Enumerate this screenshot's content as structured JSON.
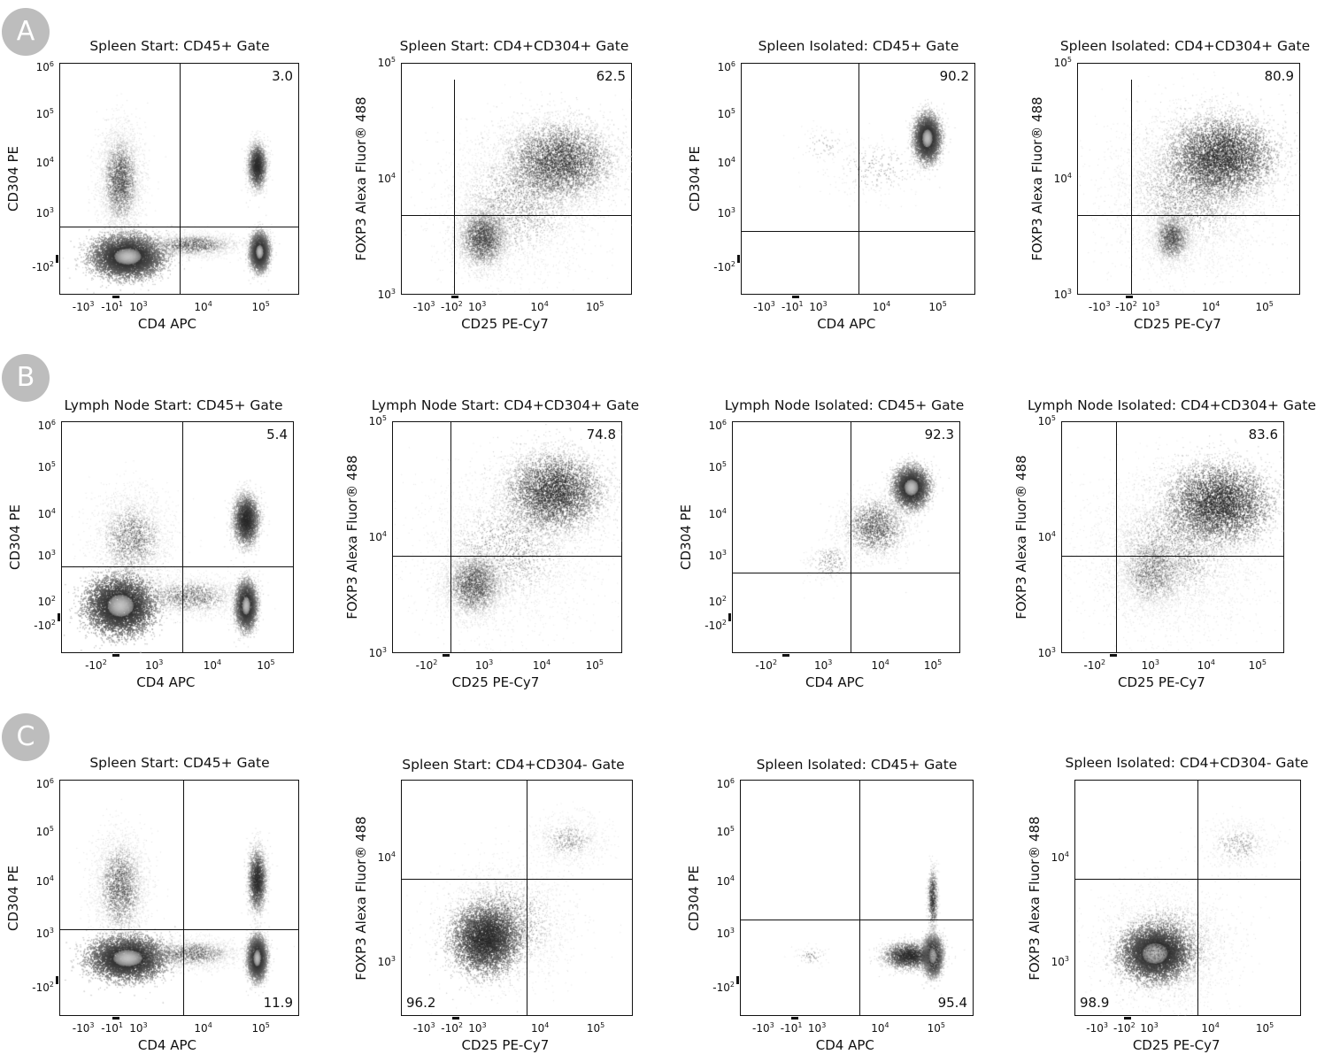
{
  "rows": [
    {
      "label": "A"
    },
    {
      "label": "B"
    },
    {
      "label": "C"
    }
  ],
  "chart_data": [
    {
      "type": "scatter",
      "row": "A",
      "title": "Spleen Start: CD45+ Gate",
      "xlabel": "CD4 APC",
      "ylabel": "CD304 PE",
      "xticks": [
        "-10^3",
        "-10^1",
        "10^3",
        "10^4",
        "10^5"
      ],
      "yticks": [
        "-10^2",
        "10^3",
        "10^4",
        "10^5",
        "10^6"
      ],
      "gate_percent": "3.0",
      "gate_quadrant": "upper-right",
      "populations": [
        {
          "name": "CD4- CD304- cluster",
          "x": "~10^2",
          "y": "~-10^2",
          "density": "very high"
        },
        {
          "name": "CD4+ CD304- cluster",
          "x": "~10^5",
          "y": "~0",
          "density": "high"
        },
        {
          "name": "CD4+ CD304+ cluster",
          "x": "~10^5",
          "y": "~10^4",
          "density": "medium"
        },
        {
          "name": "CD4- CD304 spread",
          "x": "~10^2",
          "y": "10^3-10^5",
          "density": "low"
        }
      ]
    },
    {
      "type": "scatter",
      "row": "A",
      "title": "Spleen Start: CD4+CD304+ Gate",
      "xlabel": "CD25 PE-Cy7",
      "ylabel": "FOXP3 Alexa Fluor® 488",
      "xticks": [
        "-10^3",
        "-10^2",
        "10^3",
        "10^4",
        "10^5"
      ],
      "yticks": [
        "10^3",
        "10^4",
        "10^5"
      ],
      "gate_percent": "62.5",
      "gate_quadrant": "upper-right",
      "populations": [
        {
          "name": "CD25+ FOXP3+ cluster",
          "x": "~10^4",
          "y": "~1.5x10^4",
          "density": "medium"
        },
        {
          "name": "CD25 low FOXP3 low cluster",
          "x": "~10^3",
          "y": "~3x10^3",
          "density": "medium"
        }
      ]
    },
    {
      "type": "scatter",
      "row": "A",
      "title": "Spleen Isolated: CD45+ Gate",
      "xlabel": "CD4 APC",
      "ylabel": "CD304 PE",
      "xticks": [
        "-10^3",
        "-10^1",
        "10^3",
        "10^4",
        "10^5"
      ],
      "yticks": [
        "-10^2",
        "10^3",
        "10^4",
        "10^5",
        "10^6"
      ],
      "gate_percent": "90.2",
      "gate_quadrant": "upper-right",
      "populations": [
        {
          "name": "CD4+ CD304+ cluster",
          "x": "~7x10^4",
          "y": "~4x10^4",
          "density": "very high"
        }
      ]
    },
    {
      "type": "scatter",
      "row": "A",
      "title": "Spleen Isolated: CD4+CD304+ Gate",
      "xlabel": "CD25 PE-Cy7",
      "ylabel": "FOXP3 Alexa Fluor® 488",
      "xticks": [
        "-10^3",
        "-10^2",
        "10^3",
        "10^4",
        "10^5"
      ],
      "yticks": [
        "10^3",
        "10^4",
        "10^5"
      ],
      "gate_percent": "80.9",
      "gate_quadrant": "upper-right",
      "populations": [
        {
          "name": "CD25+ FOXP3+ cluster",
          "x": "~10^4",
          "y": "~1.5x10^4",
          "density": "high"
        },
        {
          "name": "CD25 low cluster",
          "x": "~10^3",
          "y": "~3x10^3",
          "density": "low"
        }
      ]
    },
    {
      "type": "scatter",
      "row": "B",
      "title": "Lymph Node Start: CD45+ Gate",
      "xlabel": "CD4 APC",
      "ylabel": "CD304 PE",
      "xticks": [
        "-10^2",
        "10^3",
        "10^4",
        "10^5"
      ],
      "yticks": [
        "-10^2",
        "10^2",
        "10^3",
        "10^4",
        "10^5",
        "10^6"
      ],
      "gate_percent": "5.4",
      "gate_quadrant": "upper-right",
      "populations": [
        {
          "name": "CD4- CD304- cluster",
          "x": "~2x10^2",
          "y": "~10^2",
          "density": "very high"
        },
        {
          "name": "CD4+ CD304- cluster",
          "x": "~5x10^4",
          "y": "~10^2",
          "density": "high"
        },
        {
          "name": "CD4+ CD304+ cluster",
          "x": "~5x10^4",
          "y": "~5x10^3",
          "density": "medium"
        }
      ]
    },
    {
      "type": "scatter",
      "row": "B",
      "title": "Lymph Node Start: CD4+CD304+ Gate",
      "xlabel": "CD25 PE-Cy7",
      "ylabel": "FOXP3 Alexa Fluor® 488",
      "xticks": [
        "-10^2",
        "10^3",
        "10^4",
        "10^5"
      ],
      "yticks": [
        "10^3",
        "10^4",
        "10^5"
      ],
      "gate_percent": "74.8",
      "gate_quadrant": "upper-right",
      "populations": [
        {
          "name": "CD25+ FOXP3+ cluster",
          "x": "~2x10^4",
          "y": "~2x10^4",
          "density": "medium"
        },
        {
          "name": "CD25 low cluster",
          "x": "~10^3",
          "y": "~3x10^3",
          "density": "low"
        }
      ]
    },
    {
      "type": "scatter",
      "row": "B",
      "title": "Lymph Node Isolated: CD45+ Gate",
      "xlabel": "CD4 APC",
      "ylabel": "CD304 PE",
      "xticks": [
        "-10^2",
        "10^3",
        "10^4",
        "10^5"
      ],
      "yticks": [
        "-10^2",
        "10^2",
        "10^3",
        "10^4",
        "10^5",
        "10^6"
      ],
      "gate_percent": "92.3",
      "gate_quadrant": "upper-right",
      "populations": [
        {
          "name": "CD4+ CD304+ cluster",
          "x": "~3x10^4",
          "y": "~2x10^4",
          "density": "very high"
        }
      ]
    },
    {
      "type": "scatter",
      "row": "B",
      "title": "Lymph Node Isolated: CD4+CD304+ Gate",
      "xlabel": "CD25 PE-Cy7",
      "ylabel": "FOXP3 Alexa Fluor® 488",
      "xticks": [
        "-10^2",
        "10^3",
        "10^4",
        "10^5"
      ],
      "yticks": [
        "10^3",
        "10^4",
        "10^5"
      ],
      "gate_percent": "83.6",
      "gate_quadrant": "upper-right",
      "populations": [
        {
          "name": "CD25+ FOXP3+ cluster",
          "x": "~2x10^4",
          "y": "~2x10^4",
          "density": "high"
        }
      ]
    },
    {
      "type": "scatter",
      "row": "C",
      "title": "Spleen Start: CD45+ Gate",
      "xlabel": "CD4 APC",
      "ylabel": "CD304 PE",
      "xticks": [
        "-10^3",
        "-10^1",
        "10^3",
        "10^4",
        "10^5"
      ],
      "yticks": [
        "-10^2",
        "10^3",
        "10^4",
        "10^5",
        "10^6"
      ],
      "gate_percent": "11.9",
      "gate_quadrant": "lower-right",
      "populations": [
        {
          "name": "CD4- CD304- cluster",
          "x": "~10^2",
          "y": "~0",
          "density": "very high"
        },
        {
          "name": "CD4+ CD304- cluster",
          "x": "~8x10^4",
          "y": "~0",
          "density": "high"
        },
        {
          "name": "CD4+ CD304+ cluster",
          "x": "~8x10^4",
          "y": "~10^4",
          "density": "medium"
        }
      ]
    },
    {
      "type": "scatter",
      "row": "C",
      "title": "Spleen Start: CD4+CD304- Gate",
      "xlabel": "CD25 PE-Cy7",
      "ylabel": "FOXP3 Alexa Fluor® 488",
      "xticks": [
        "-10^3",
        "-10^2",
        "10^3",
        "10^4",
        "10^5"
      ],
      "yticks": [
        "10^3",
        "10^4"
      ],
      "gate_percent": "96.2",
      "gate_quadrant": "lower-left",
      "populations": [
        {
          "name": "CD25- FOXP3- cluster",
          "x": "~5x10^2",
          "y": "~2x10^3",
          "density": "high"
        },
        {
          "name": "CD25+ FOXP3+ scatter",
          "x": "~10^4",
          "y": "~10^4",
          "density": "low"
        }
      ]
    },
    {
      "type": "scatter",
      "row": "C",
      "title": "Spleen Isolated: CD45+ Gate",
      "xlabel": "CD4 APC",
      "ylabel": "CD304 PE",
      "xticks": [
        "-10^3",
        "-10^1",
        "10^3",
        "10^4",
        "10^5"
      ],
      "yticks": [
        "-10^2",
        "10^3",
        "10^4",
        "10^5",
        "10^6"
      ],
      "gate_percent": "95.4",
      "gate_quadrant": "lower-right",
      "populations": [
        {
          "name": "CD4+ CD304- cluster",
          "x": "~8x10^4",
          "y": "~0",
          "density": "very high"
        },
        {
          "name": "CD4- cluster",
          "x": "~10^1",
          "y": "~0",
          "density": "low"
        }
      ]
    },
    {
      "type": "scatter",
      "row": "C",
      "title": "Spleen Isolated: CD4+CD304- Gate",
      "xlabel": "CD25 PE-Cy7",
      "ylabel": "FOXP3 Alexa Fluor® 488",
      "xticks": [
        "-10^3",
        "-10^2",
        "10^3",
        "10^4",
        "10^5"
      ],
      "yticks": [
        "10^3",
        "10^4"
      ],
      "gate_percent": "98.9",
      "gate_quadrant": "lower-left",
      "populations": [
        {
          "name": "CD25- FOXP3- cluster",
          "x": "~5x10^2",
          "y": "~1.5x10^3",
          "density": "very high"
        },
        {
          "name": "CD25+ FOXP3+ scatter",
          "x": "~10^4",
          "y": "~10^4",
          "density": "low"
        }
      ]
    }
  ]
}
